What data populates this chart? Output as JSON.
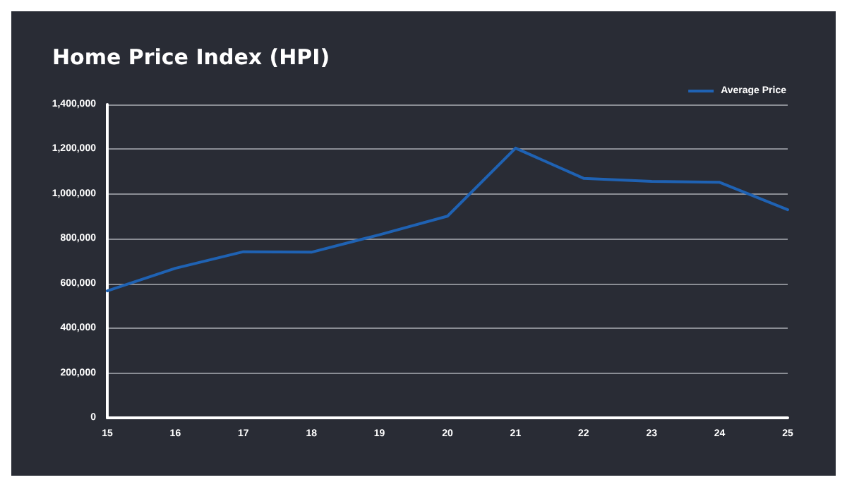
{
  "chart_data": {
    "type": "line",
    "title": "Home Price Index (HPI)",
    "categories": [
      "15",
      "16",
      "17",
      "18",
      "19",
      "20",
      "21",
      "22",
      "23",
      "24",
      "25"
    ],
    "series": [
      {
        "name": "Average Price",
        "color": "#1f62b3",
        "values": [
          567000,
          668000,
          742000,
          740000,
          818000,
          901000,
          1205000,
          1070000,
          1056000,
          1052000,
          930000
        ]
      }
    ],
    "ylim": [
      0,
      1400000
    ],
    "yticks": [
      {
        "value": 0,
        "label": "0"
      },
      {
        "value": 200000,
        "label": "200,000"
      },
      {
        "value": 400000,
        "label": "400,000"
      },
      {
        "value": 600000,
        "label": "600,000"
      },
      {
        "value": 800000,
        "label": "800,000"
      },
      {
        "value": 1000000,
        "label": "1,000,000"
      },
      {
        "value": 1200000,
        "label": "1,200,000"
      },
      {
        "value": 1400000,
        "label": "1,400,000"
      }
    ],
    "grid": "y",
    "legend": "top right",
    "marker": "none",
    "line_style": "solid"
  }
}
